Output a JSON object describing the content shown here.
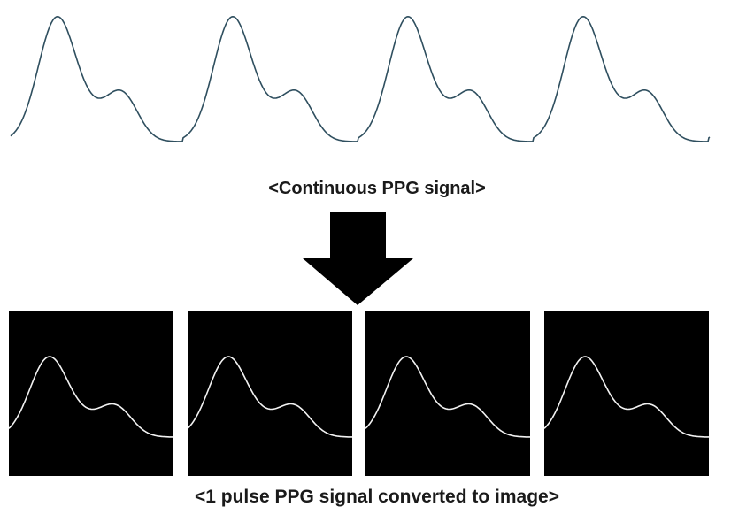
{
  "captions": {
    "continuous": "<Continuous PPG signal>",
    "pulse_images": "<1 pulse PPG signal converted to image>"
  },
  "signal": {
    "continuous_pulse_count": 4,
    "image_panel_count": 4,
    "line_color": "#2f4f5f",
    "panel_background": "#000000",
    "panel_trace_color": "#f2f2f2",
    "arrow_color": "#000000"
  }
}
